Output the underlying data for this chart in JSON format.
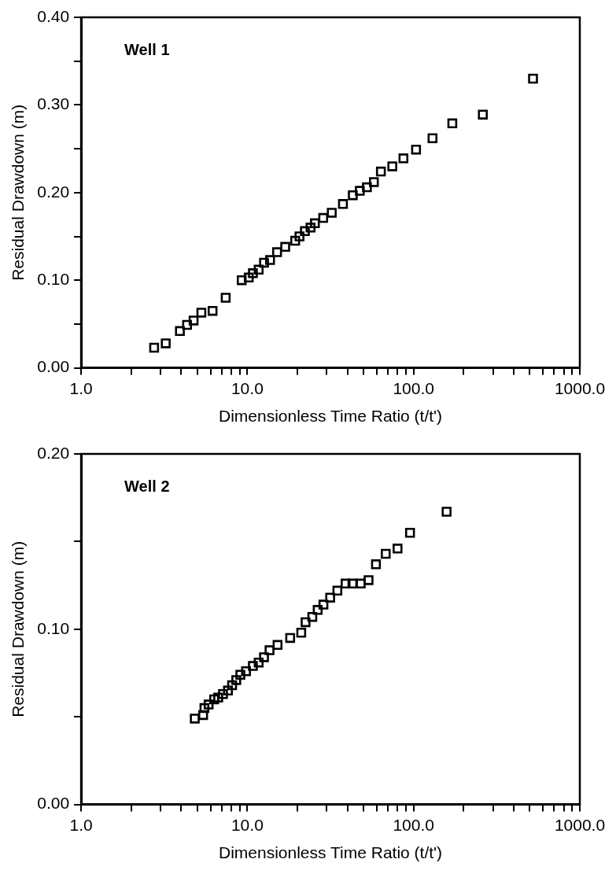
{
  "chart_data": [
    {
      "type": "scatter",
      "annotations": [
        "Well 1"
      ],
      "xlabel": "Dimensionless Time Ratio (t/t')",
      "ylabel": "Residual Drawdown (m)",
      "log": "x",
      "grid": false,
      "legend": false,
      "marker": "square",
      "xlim": [
        1,
        1000
      ],
      "ylim": [
        0,
        0.4
      ],
      "xticks": [
        {
          "value": 1,
          "label": "1.0"
        },
        {
          "value": 2,
          "label": null
        },
        {
          "value": 3,
          "label": null
        },
        {
          "value": 4,
          "label": null
        },
        {
          "value": 5,
          "label": null
        },
        {
          "value": 6,
          "label": null
        },
        {
          "value": 7,
          "label": null
        },
        {
          "value": 8,
          "label": null
        },
        {
          "value": 9,
          "label": null
        },
        {
          "value": 10,
          "label": "10.0"
        },
        {
          "value": 20,
          "label": null
        },
        {
          "value": 30,
          "label": null
        },
        {
          "value": 40,
          "label": null
        },
        {
          "value": 50,
          "label": null
        },
        {
          "value": 60,
          "label": null
        },
        {
          "value": 70,
          "label": null
        },
        {
          "value": 80,
          "label": null
        },
        {
          "value": 90,
          "label": null
        },
        {
          "value": 100,
          "label": "100.0"
        },
        {
          "value": 200,
          "label": null
        },
        {
          "value": 300,
          "label": null
        },
        {
          "value": 400,
          "label": null
        },
        {
          "value": 500,
          "label": null
        },
        {
          "value": 600,
          "label": null
        },
        {
          "value": 700,
          "label": null
        },
        {
          "value": 800,
          "label": null
        },
        {
          "value": 900,
          "label": null
        },
        {
          "value": 1000,
          "label": "1000.0"
        }
      ],
      "yticks": [
        {
          "value": 0,
          "label": "0.00"
        },
        {
          "value": 0.05,
          "label": null
        },
        {
          "value": 0.1,
          "label": "0.10"
        },
        {
          "value": 0.15,
          "label": null
        },
        {
          "value": 0.2,
          "label": "0.20"
        },
        {
          "value": 0.25,
          "label": null
        },
        {
          "value": 0.3,
          "label": "0.30"
        },
        {
          "value": 0.35,
          "label": null
        },
        {
          "value": 0.4,
          "label": "0.40"
        }
      ],
      "series": [
        {
          "color": "#000000",
          "x": [
            2.75,
            3.23,
            3.93,
            4.34,
            4.75,
            5.29,
            6.18,
            7.41,
            9.25,
            10.2,
            10.8,
            11.7,
            12.6,
            13.7,
            15.1,
            16.9,
            19.4,
            20.6,
            22.2,
            24.0,
            25.5,
            28.6,
            32.2,
            37.6,
            43.1,
            47.5,
            52.4,
            57.7,
            63.6,
            74.5,
            86.9,
            103.5,
            130,
            171,
            261,
            523
          ],
          "values": [
            0.023,
            0.028,
            0.042,
            0.049,
            0.054,
            0.063,
            0.065,
            0.08,
            0.1,
            0.103,
            0.108,
            0.112,
            0.12,
            0.123,
            0.132,
            0.138,
            0.145,
            0.15,
            0.156,
            0.16,
            0.165,
            0.171,
            0.177,
            0.187,
            0.197,
            0.202,
            0.206,
            0.212,
            0.224,
            0.23,
            0.239,
            0.249,
            0.262,
            0.279,
            0.289,
            0.33
          ]
        }
      ]
    },
    {
      "type": "scatter",
      "annotations": [
        "Well 2"
      ],
      "xlabel": "Dimensionless Time Ratio (t/t')",
      "ylabel": "Residual Drawdown (m)",
      "log": "x",
      "grid": false,
      "legend": false,
      "marker": "square",
      "xlim": [
        1,
        1000
      ],
      "ylim": [
        0,
        0.2
      ],
      "xticks": [
        {
          "value": 1,
          "label": "1.0"
        },
        {
          "value": 2,
          "label": null
        },
        {
          "value": 3,
          "label": null
        },
        {
          "value": 4,
          "label": null
        },
        {
          "value": 5,
          "label": null
        },
        {
          "value": 6,
          "label": null
        },
        {
          "value": 7,
          "label": null
        },
        {
          "value": 8,
          "label": null
        },
        {
          "value": 9,
          "label": null
        },
        {
          "value": 10,
          "label": "10.0"
        },
        {
          "value": 20,
          "label": null
        },
        {
          "value": 30,
          "label": null
        },
        {
          "value": 40,
          "label": null
        },
        {
          "value": 50,
          "label": null
        },
        {
          "value": 60,
          "label": null
        },
        {
          "value": 70,
          "label": null
        },
        {
          "value": 80,
          "label": null
        },
        {
          "value": 90,
          "label": null
        },
        {
          "value": 100,
          "label": "100.0"
        },
        {
          "value": 200,
          "label": null
        },
        {
          "value": 300,
          "label": null
        },
        {
          "value": 400,
          "label": null
        },
        {
          "value": 500,
          "label": null
        },
        {
          "value": 600,
          "label": null
        },
        {
          "value": 700,
          "label": null
        },
        {
          "value": 800,
          "label": null
        },
        {
          "value": 900,
          "label": null
        },
        {
          "value": 1000,
          "label": "1000.0"
        }
      ],
      "yticks": [
        {
          "value": 0,
          "label": "0.00"
        },
        {
          "value": 0.05,
          "label": null
        },
        {
          "value": 0.1,
          "label": "0.10"
        },
        {
          "value": 0.15,
          "label": null
        },
        {
          "value": 0.2,
          "label": "0.20"
        }
      ],
      "series": [
        {
          "color": "#000000",
          "x": [
            4.83,
            5.42,
            5.52,
            5.85,
            6.32,
            6.68,
            7.14,
            7.65,
            8.1,
            8.58,
            9.08,
            9.82,
            10.8,
            11.7,
            12.6,
            13.6,
            15.2,
            18.1,
            21.1,
            22.4,
            24.6,
            26.5,
            28.7,
            31.5,
            34.8,
            39.0,
            42.9,
            48.1,
            53.6,
            59.4,
            68.0,
            80.1,
            95.2,
            158
          ],
          "values": [
            0.049,
            0.051,
            0.055,
            0.057,
            0.06,
            0.061,
            0.063,
            0.065,
            0.068,
            0.071,
            0.074,
            0.076,
            0.079,
            0.081,
            0.084,
            0.088,
            0.091,
            0.095,
            0.098,
            0.104,
            0.107,
            0.111,
            0.114,
            0.118,
            0.122,
            0.126,
            0.126,
            0.126,
            0.128,
            0.137,
            0.143,
            0.146,
            0.155,
            0.167
          ]
        }
      ]
    }
  ]
}
